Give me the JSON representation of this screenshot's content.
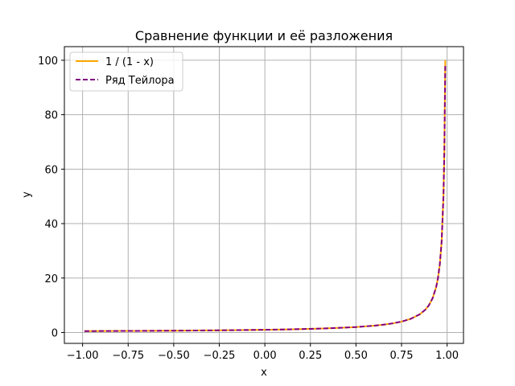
{
  "chart_data": {
    "type": "line",
    "title": "Сравнение функции и её разложения",
    "xlabel": "x",
    "ylabel": "y",
    "xlim": [
      -1.1,
      1.09
    ],
    "ylim": [
      -4,
      105
    ],
    "xticks": [
      -1.0,
      -0.75,
      -0.5,
      -0.25,
      0.0,
      0.25,
      0.5,
      0.75,
      1.0
    ],
    "xtick_labels": [
      "−1.00",
      "−0.75",
      "−0.50",
      "−0.25",
      "0.00",
      "0.25",
      "0.50",
      "0.75",
      "1.00"
    ],
    "yticks": [
      0,
      20,
      40,
      60,
      80,
      100
    ],
    "ytick_labels": [
      "0",
      "20",
      "40",
      "60",
      "80",
      "100"
    ],
    "grid": true,
    "legend_position": "top-left",
    "series": [
      {
        "name": "1 / (1 - x)",
        "color": "#ffa500",
        "style": "solid",
        "x": [
          -0.99,
          -0.9,
          -0.8,
          -0.7,
          -0.6,
          -0.5,
          -0.4,
          -0.3,
          -0.2,
          -0.1,
          0.0,
          0.1,
          0.2,
          0.3,
          0.4,
          0.5,
          0.6,
          0.65,
          0.7,
          0.75,
          0.8,
          0.85,
          0.88,
          0.9,
          0.92,
          0.94,
          0.95,
          0.96,
          0.97,
          0.98,
          0.985,
          0.99
        ],
        "y": [
          0.5,
          0.53,
          0.56,
          0.59,
          0.63,
          0.67,
          0.71,
          0.77,
          0.83,
          0.91,
          1.0,
          1.11,
          1.25,
          1.43,
          1.67,
          2.0,
          2.5,
          2.86,
          3.33,
          4.0,
          5.0,
          6.67,
          8.33,
          10.0,
          12.5,
          16.67,
          20.0,
          25.0,
          33.33,
          50.0,
          66.67,
          100.0
        ]
      },
      {
        "name": "Ряд Тейлора",
        "color": "#800080",
        "style": "dashed",
        "x": [
          -0.99,
          -0.9,
          -0.8,
          -0.7,
          -0.6,
          -0.5,
          -0.4,
          -0.3,
          -0.2,
          -0.1,
          0.0,
          0.1,
          0.2,
          0.3,
          0.4,
          0.5,
          0.6,
          0.65,
          0.7,
          0.75,
          0.8,
          0.85,
          0.88,
          0.9,
          0.92,
          0.94,
          0.95,
          0.96,
          0.97,
          0.98,
          0.985,
          0.99
        ],
        "y": [
          0.5,
          0.53,
          0.56,
          0.59,
          0.63,
          0.67,
          0.71,
          0.77,
          0.83,
          0.91,
          1.0,
          1.11,
          1.25,
          1.43,
          1.67,
          2.0,
          2.5,
          2.86,
          3.33,
          4.0,
          5.0,
          6.67,
          8.33,
          10.0,
          12.5,
          16.67,
          20.0,
          25.0,
          33.33,
          50.0,
          66.67,
          98.0
        ]
      }
    ]
  }
}
